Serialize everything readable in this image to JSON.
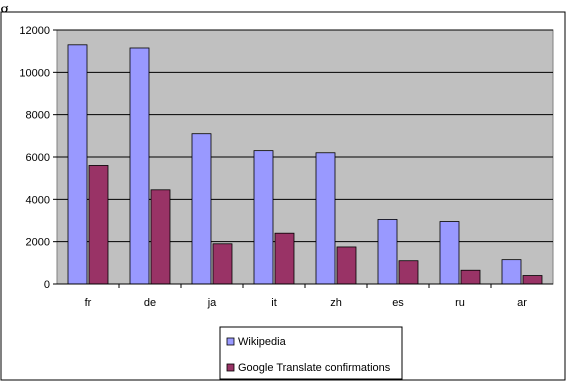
{
  "page_fragment": "g",
  "chart_data": {
    "type": "bar",
    "categories": [
      "fr",
      "de",
      "ja",
      "it",
      "zh",
      "es",
      "ru",
      "ar"
    ],
    "series": [
      {
        "name": "Wikipedia",
        "color": "#9999ff",
        "values": [
          11300,
          11150,
          7100,
          6300,
          6200,
          3050,
          2950,
          1150
        ]
      },
      {
        "name": "Google Translate confirmations",
        "color": "#993366",
        "values": [
          5600,
          4450,
          1900,
          2400,
          1750,
          1100,
          650,
          400
        ]
      }
    ],
    "y_ticks": [
      "0",
      "2000",
      "4000",
      "6000",
      "8000",
      "10000",
      "12000"
    ],
    "ylim": [
      0,
      12000
    ],
    "grid": true,
    "plot_background": "#c0c0c0",
    "legend_position": "bottom"
  }
}
